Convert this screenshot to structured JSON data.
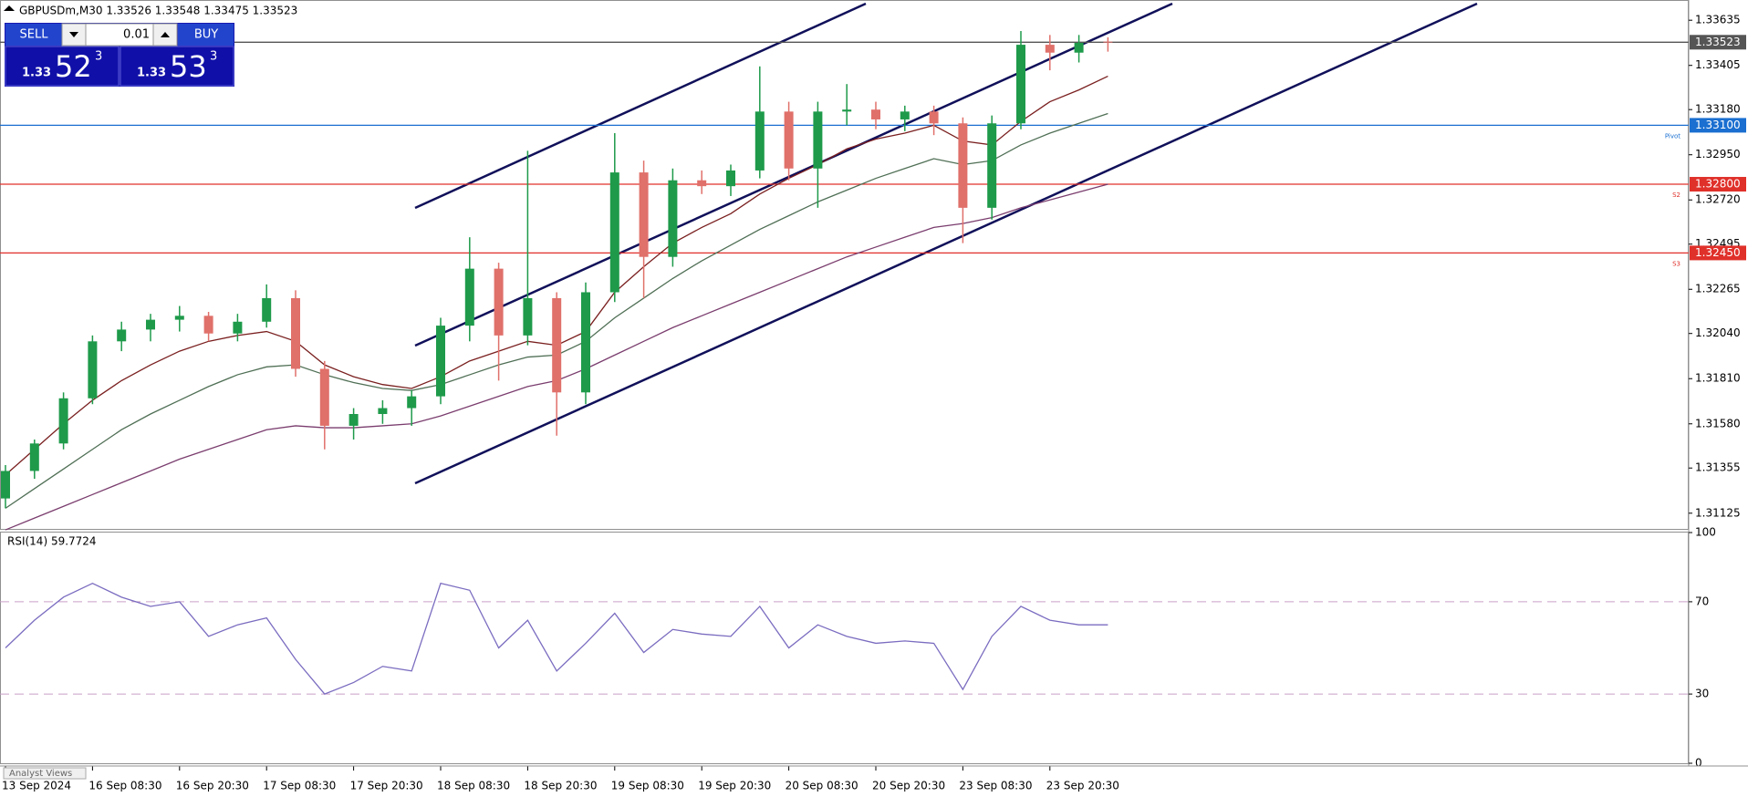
{
  "chart_data": [
    {
      "type": "candlestick",
      "title": "GBPUSDm,M30  1.33526 1.33548 1.33475 1.33523",
      "categories": [
        "13 Sep 2024",
        null,
        null,
        "16 Sep 08:30",
        null,
        null,
        "16 Sep 20:30",
        null,
        null,
        "17 Sep 08:30",
        null,
        null,
        "17 Sep 20:30",
        null,
        null,
        "18 Sep 08:30",
        null,
        null,
        "18 Sep 20:30",
        null,
        null,
        "19 Sep 08:30",
        null,
        null,
        "19 Sep 20:30",
        null,
        null,
        "20 Sep 08:30",
        null,
        null,
        "20 Sep 20:30",
        null,
        null,
        "23 Sep 08:30",
        null,
        null,
        "23 Sep 20:30",
        null,
        null
      ],
      "open": [
        1.312,
        1.3134,
        1.3148,
        1.3171,
        1.32,
        1.3206,
        1.3211,
        1.3213,
        1.3204,
        1.321,
        1.3222,
        1.3186,
        1.3157,
        1.3163,
        1.3166,
        1.3172,
        1.3208,
        1.3237,
        1.3203,
        1.3222,
        1.3174,
        1.3225,
        1.3286,
        1.3243,
        1.3282,
        1.3279,
        1.3287,
        1.3317,
        1.3288,
        1.3317,
        1.3318,
        1.3313,
        1.3317,
        1.3311,
        1.3268,
        1.3311,
        1.3351,
        1.3347,
        1.33526
      ],
      "high": [
        1.3137,
        1.315,
        1.3174,
        1.3203,
        1.321,
        1.3214,
        1.3218,
        1.3215,
        1.3214,
        1.3229,
        1.3226,
        1.319,
        1.3166,
        1.317,
        1.3175,
        1.3212,
        1.3253,
        1.324,
        1.3297,
        1.3225,
        1.323,
        1.3306,
        1.3292,
        1.3288,
        1.3287,
        1.329,
        1.334,
        1.3322,
        1.3322,
        1.3331,
        1.3322,
        1.332,
        1.332,
        1.3314,
        1.3315,
        1.3358,
        1.3356,
        1.3356,
        1.33548
      ],
      "low": [
        1.3115,
        1.313,
        1.3145,
        1.3168,
        1.3195,
        1.32,
        1.3205,
        1.32,
        1.32,
        1.3207,
        1.3182,
        1.3145,
        1.315,
        1.3158,
        1.3157,
        1.3168,
        1.32,
        1.318,
        1.3198,
        1.3152,
        1.3168,
        1.322,
        1.3222,
        1.3238,
        1.3275,
        1.3274,
        1.3283,
        1.3282,
        1.3268,
        1.331,
        1.3308,
        1.3307,
        1.3305,
        1.325,
        1.3262,
        1.3308,
        1.3338,
        1.3342,
        1.33475
      ],
      "close": [
        1.3134,
        1.3148,
        1.3171,
        1.32,
        1.3206,
        1.3211,
        1.3213,
        1.3204,
        1.321,
        1.3222,
        1.3186,
        1.3157,
        1.3163,
        1.3166,
        1.3172,
        1.3208,
        1.3237,
        1.3203,
        1.3222,
        1.3174,
        1.3225,
        1.3286,
        1.3243,
        1.3282,
        1.3279,
        1.3287,
        1.3317,
        1.3288,
        1.3317,
        1.3318,
        1.3313,
        1.3317,
        1.3311,
        1.3268,
        1.3311,
        1.3351,
        1.3347,
        1.3352,
        1.33523
      ],
      "up_color": "#1e9a4a",
      "down_color": "#e0706a",
      "series": [
        {
          "color": "#7a1f1f",
          "values": [
            1.3132,
            1.3145,
            1.3158,
            1.317,
            1.318,
            1.3188,
            1.3195,
            1.32,
            1.3203,
            1.3205,
            1.32,
            1.3188,
            1.3182,
            1.3178,
            1.3176,
            1.3182,
            1.319,
            1.3195,
            1.32,
            1.3198,
            1.3205,
            1.3225,
            1.3238,
            1.325,
            1.3258,
            1.3265,
            1.3275,
            1.3283,
            1.329,
            1.3298,
            1.3303,
            1.3306,
            1.331,
            1.3302,
            1.33,
            1.3312,
            1.3322,
            1.3328,
            1.3335
          ]
        },
        {
          "color": "#4f6f55",
          "values": [
            1.3115,
            1.3125,
            1.3135,
            1.3145,
            1.3155,
            1.3163,
            1.317,
            1.3177,
            1.3183,
            1.3187,
            1.3188,
            1.3183,
            1.3179,
            1.3176,
            1.3175,
            1.3178,
            1.3183,
            1.3188,
            1.3192,
            1.3193,
            1.32,
            1.3212,
            1.3222,
            1.3232,
            1.3241,
            1.3249,
            1.3257,
            1.3264,
            1.3271,
            1.3277,
            1.3283,
            1.3288,
            1.3293,
            1.329,
            1.3292,
            1.33,
            1.3306,
            1.3311,
            1.3316
          ]
        },
        {
          "color": "#7a3d6e",
          "values": [
            1.3104,
            1.311,
            1.3116,
            1.3122,
            1.3128,
            1.3134,
            1.314,
            1.3145,
            1.315,
            1.3155,
            1.3157,
            1.3156,
            1.3156,
            1.3157,
            1.3158,
            1.3162,
            1.3167,
            1.3172,
            1.3177,
            1.318,
            1.3186,
            1.3193,
            1.32,
            1.3207,
            1.3213,
            1.3219,
            1.3225,
            1.3231,
            1.3237,
            1.3243,
            1.3248,
            1.3253,
            1.3258,
            1.326,
            1.3263,
            1.3268,
            1.3272,
            1.3276,
            1.328
          ]
        }
      ],
      "ylim": [
        1.31045,
        1.33738
      ],
      "yticks": [
        1.33635,
        1.33405,
        {
          "value": 1.3318,
          "label": "1.33180"
        },
        {
          "value": 1.3295,
          "label": "1.32950"
        },
        {
          "value": 1.3272,
          "label": "1.32720"
        },
        1.32495,
        1.32265,
        {
          "value": 1.3204,
          "label": "1.32040"
        },
        {
          "value": 1.3181,
          "label": "1.31810"
        },
        {
          "value": 1.3158,
          "label": "1.31580"
        },
        1.31355,
        1.31125
      ],
      "levels": [
        {
          "value": 1.33523,
          "color": "#555555"
        },
        {
          "value": 1.331,
          "label": "1.33100",
          "tag": "Pivot",
          "color": "#1a6fd0"
        },
        {
          "value": 1.328,
          "label": "1.32800",
          "tag": "S2",
          "color": "#e0302a"
        },
        {
          "value": 1.3245,
          "label": "1.32450",
          "tag": "S3",
          "color": "#e0302a"
        }
      ]
    },
    {
      "type": "line",
      "title": "RSI(14) 59.7724",
      "series": [
        {
          "color": "#7b6cc0",
          "values": [
            50,
            62,
            72,
            78,
            72,
            68,
            70,
            55,
            60,
            63,
            45,
            30,
            35,
            42,
            40,
            78,
            75,
            50,
            62,
            40,
            52,
            65,
            48,
            58,
            56,
            55,
            68,
            50,
            60,
            55,
            52,
            53,
            52,
            32,
            55,
            68,
            62,
            60,
            60
          ]
        }
      ],
      "ylim": [
        0,
        100
      ],
      "yticks": [
        100,
        70,
        30,
        0
      ],
      "levels": [
        70,
        30
      ]
    }
  ],
  "trade_panel": {
    "sell": "SELL",
    "buy": "BUY",
    "lot": "0.01",
    "bid": {
      "base": "1.33",
      "pips": "52",
      "point": "3"
    },
    "ask": {
      "base": "1.33",
      "pips": "53",
      "point": "3"
    }
  },
  "tabs": [
    "Analyst Views"
  ]
}
